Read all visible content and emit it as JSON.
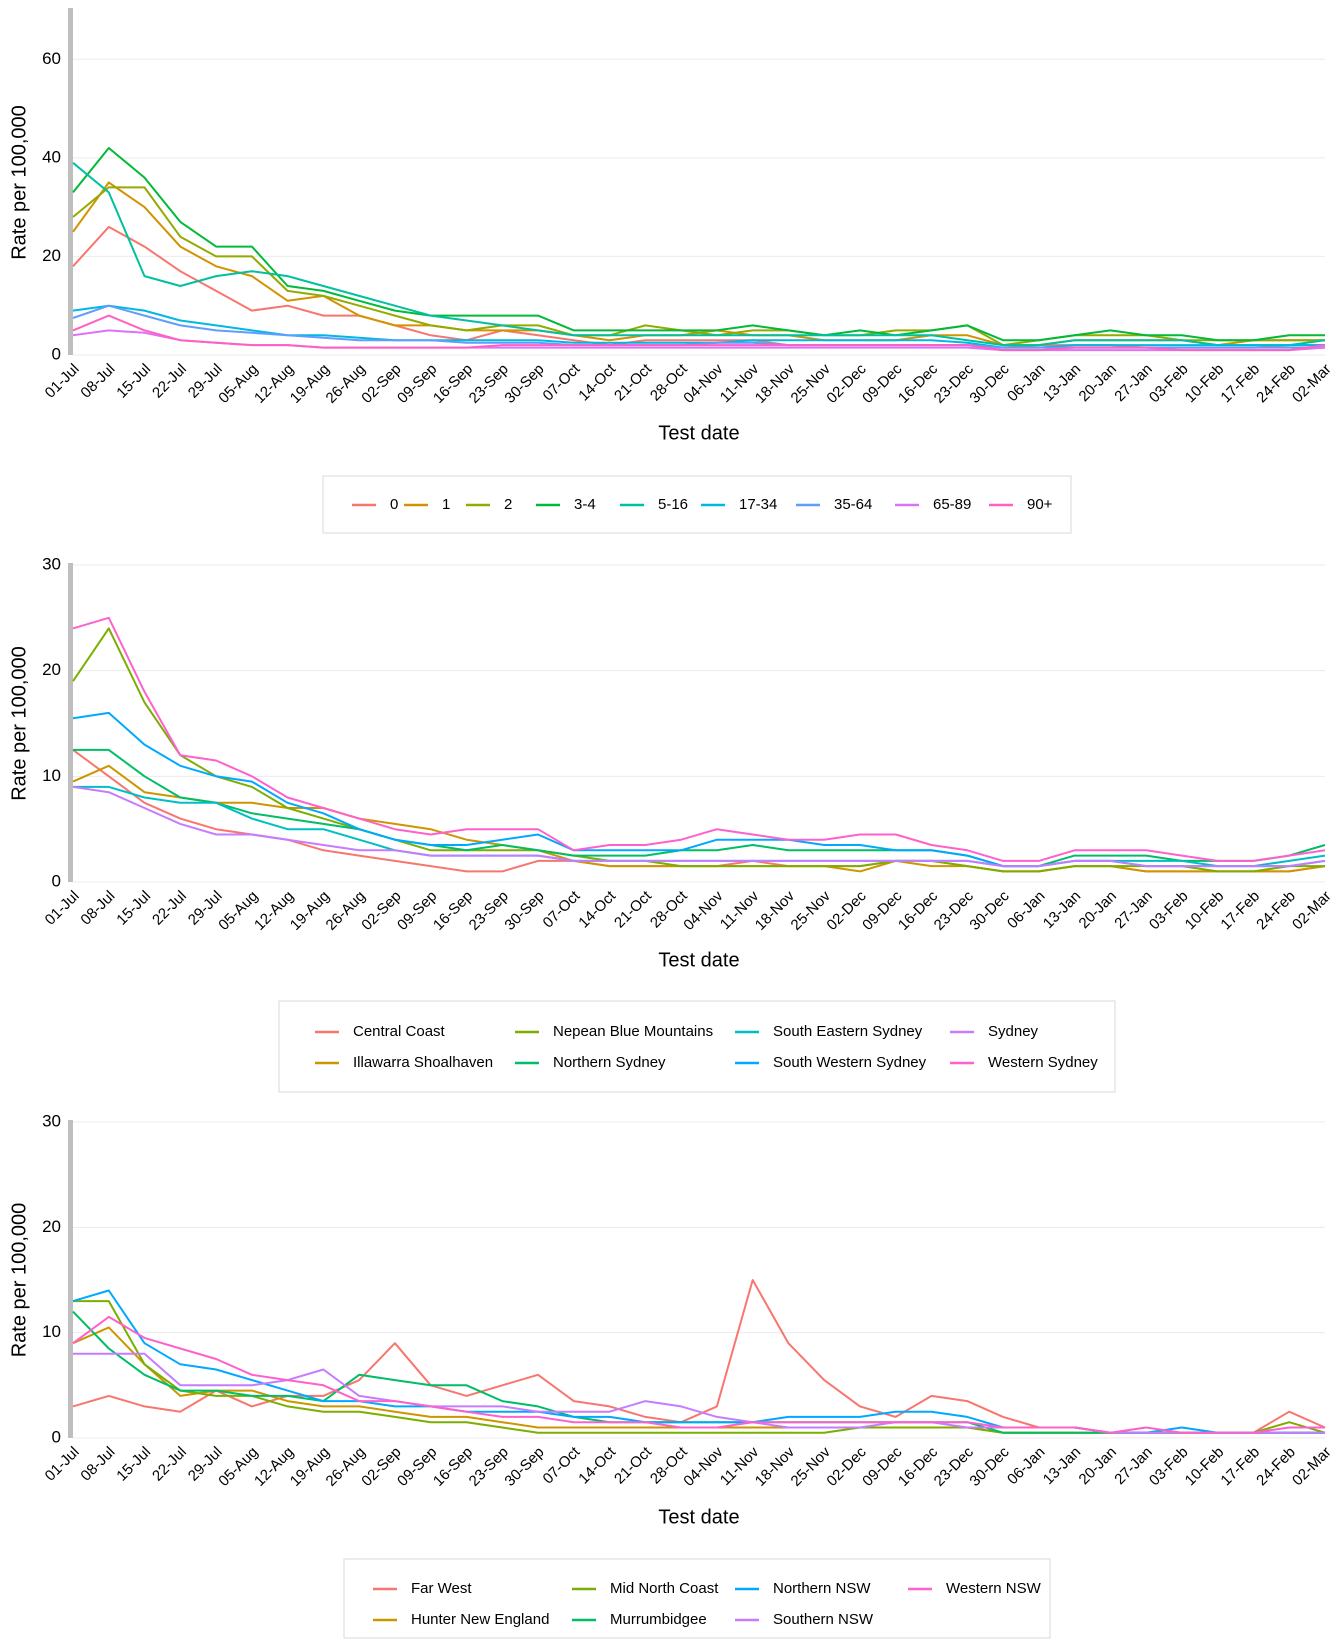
{
  "chart_data": [
    {
      "type": "line",
      "y_label": "Rate per 100,000",
      "x_label": "Test date",
      "grid": true,
      "categories": [
        "01-Jul",
        "08-Jul",
        "15-Jul",
        "22-Jul",
        "29-Jul",
        "05-Aug",
        "12-Aug",
        "19-Aug",
        "26-Aug",
        "02-Sep",
        "09-Sep",
        "16-Sep",
        "23-Sep",
        "30-Sep",
        "07-Oct",
        "14-Oct",
        "21-Oct",
        "28-Oct",
        "04-Nov",
        "11-Nov",
        "18-Nov",
        "25-Nov",
        "02-Dec",
        "09-Dec",
        "16-Dec",
        "23-Dec",
        "30-Dec",
        "06-Jan",
        "13-Jan",
        "20-Jan",
        "27-Jan",
        "03-Feb",
        "10-Feb",
        "17-Feb",
        "24-Feb",
        "02-Mar"
      ],
      "ylim": [
        0,
        70
      ],
      "yticks": [
        0,
        20,
        40,
        60
      ],
      "series": [
        {
          "name": "0",
          "color": "#F8766D",
          "values": [
            18,
            26,
            22,
            17,
            13,
            9,
            10,
            8,
            8,
            6,
            4,
            3,
            5,
            4,
            3,
            2,
            3,
            3,
            3,
            3,
            2,
            2,
            2,
            2,
            2,
            2,
            1.5,
            2,
            2,
            2,
            1.5,
            1.5,
            1.5,
            1.5,
            2,
            2
          ]
        },
        {
          "name": "1",
          "color": "#D39200",
          "values": [
            25,
            35,
            30,
            22,
            18,
            16,
            11,
            12,
            8,
            6,
            6,
            5,
            5,
            5,
            4,
            3,
            4,
            4,
            5,
            4,
            4,
            3,
            3,
            3,
            4,
            4,
            2,
            2,
            3,
            3,
            3,
            3,
            2,
            3,
            3,
            3
          ]
        },
        {
          "name": "2",
          "color": "#93AA00",
          "values": [
            28,
            34,
            34,
            24,
            20,
            20,
            13,
            12,
            10,
            8,
            6,
            5,
            6,
            6,
            4,
            4,
            6,
            5,
            4,
            5,
            5,
            4,
            4,
            5,
            5,
            6,
            2,
            3,
            4,
            4,
            4,
            3,
            3,
            3,
            3,
            3
          ]
        },
        {
          "name": "3-4",
          "color": "#00BA38",
          "values": [
            33,
            42,
            36,
            27,
            22,
            22,
            14,
            13,
            11,
            9,
            8,
            8,
            8,
            8,
            5,
            5,
            5,
            5,
            5,
            6,
            5,
            4,
            5,
            4,
            5,
            6,
            3,
            3,
            4,
            5,
            4,
            4,
            3,
            3,
            4,
            4
          ]
        },
        {
          "name": "5-16",
          "color": "#00C19F",
          "values": [
            39,
            33,
            16,
            14,
            16,
            17,
            16,
            14,
            12,
            10,
            8,
            7,
            6,
            5,
            4,
            4,
            4,
            4,
            4,
            4,
            4,
            4,
            4,
            4,
            4,
            3,
            2,
            2,
            3,
            3,
            3,
            3,
            2,
            2,
            2,
            3
          ]
        },
        {
          "name": "17-34",
          "color": "#00B9E3",
          "values": [
            9,
            10,
            9,
            7,
            6,
            5,
            4,
            4,
            3.5,
            3,
            3,
            3,
            3,
            3,
            2.5,
            2.5,
            2.5,
            2.5,
            2.5,
            3,
            3,
            3,
            3,
            3,
            3,
            2.5,
            1.5,
            1.5,
            2,
            2,
            2,
            2,
            2,
            2,
            2,
            2
          ]
        },
        {
          "name": "35-64",
          "color": "#619CFF",
          "values": [
            7.5,
            10,
            8,
            6,
            5,
            4.5,
            4,
            3.5,
            3,
            3,
            3,
            2.5,
            2.5,
            2.5,
            2,
            2,
            2,
            2,
            2.5,
            2.5,
            2,
            2,
            2,
            2,
            2,
            2,
            1.5,
            1.5,
            1.5,
            1.5,
            1.5,
            1.5,
            1.5,
            1.5,
            1.5,
            1.5
          ]
        },
        {
          "name": "65-89",
          "color": "#DB72FB",
          "values": [
            4,
            5,
            4.5,
            3,
            2.5,
            2,
            2,
            1.5,
            1.5,
            1.5,
            1.5,
            1.5,
            1.5,
            1.5,
            1.5,
            1.5,
            1.5,
            1.5,
            1.5,
            1.5,
            1.5,
            1.5,
            1.5,
            1.5,
            1.5,
            1.5,
            1,
            1,
            1,
            1,
            1,
            1,
            1,
            1,
            1,
            1.5
          ]
        },
        {
          "name": "90+",
          "color": "#FF61C3",
          "values": [
            5,
            8,
            5,
            3,
            2.5,
            2,
            2,
            1.5,
            1.5,
            1.5,
            1.5,
            1.5,
            2,
            2,
            2,
            2,
            2,
            2,
            2,
            2,
            2,
            2,
            2,
            2,
            2,
            2,
            1,
            1,
            1.5,
            1.5,
            1.5,
            1,
            1,
            1,
            1,
            2
          ]
        }
      ]
    },
    {
      "type": "line",
      "y_label": "Rate per 100,000",
      "x_label": "Test date",
      "grid": true,
      "categories": [
        "01-Jul",
        "08-Jul",
        "15-Jul",
        "22-Jul",
        "29-Jul",
        "05-Aug",
        "12-Aug",
        "19-Aug",
        "26-Aug",
        "02-Sep",
        "09-Sep",
        "16-Sep",
        "23-Sep",
        "30-Sep",
        "07-Oct",
        "14-Oct",
        "21-Oct",
        "28-Oct",
        "04-Nov",
        "11-Nov",
        "18-Nov",
        "25-Nov",
        "02-Dec",
        "09-Dec",
        "16-Dec",
        "23-Dec",
        "30-Dec",
        "06-Jan",
        "13-Jan",
        "20-Jan",
        "27-Jan",
        "03-Feb",
        "10-Feb",
        "17-Feb",
        "24-Feb",
        "02-Mar"
      ],
      "ylim": [
        0,
        30
      ],
      "yticks": [
        0,
        10,
        20,
        30
      ],
      "series": [
        {
          "name": "Central Coast",
          "color": "#F8766D",
          "values": [
            12.5,
            10,
            7.5,
            6,
            5,
            4.5,
            4,
            3,
            2.5,
            2,
            1.5,
            1,
            1,
            2,
            2,
            1.5,
            1.5,
            1.5,
            1.5,
            2,
            1.5,
            1.5,
            1.5,
            2,
            2,
            1.5,
            1,
            1,
            1.5,
            1.5,
            1,
            1,
            1,
            1,
            1,
            1.5
          ]
        },
        {
          "name": "Illawarra Shoalhaven",
          "color": "#CD9600",
          "values": [
            9.5,
            11,
            8.5,
            8,
            7.5,
            7.5,
            7,
            7,
            6,
            5.5,
            5,
            4,
            3.5,
            3,
            2,
            1.5,
            1.5,
            1.5,
            1.5,
            1.5,
            1.5,
            1.5,
            1,
            2,
            1.5,
            1.5,
            1,
            1,
            1.5,
            1.5,
            1,
            1,
            1,
            1,
            1,
            1.5
          ]
        },
        {
          "name": "Nepean Blue Mountains",
          "color": "#7CAE00",
          "values": [
            19,
            24,
            17,
            12,
            10,
            9,
            7,
            6,
            5,
            4,
            3,
            3,
            3,
            3,
            2.5,
            2,
            2,
            1.5,
            1.5,
            1.5,
            1.5,
            1.5,
            1.5,
            2,
            2,
            1.5,
            1,
            1,
            1.5,
            1.5,
            1.5,
            1.5,
            1,
            1,
            1.5,
            1.5
          ]
        },
        {
          "name": "Northern Sydney",
          "color": "#00BE67",
          "values": [
            12.5,
            12.5,
            10,
            8,
            7.5,
            6.5,
            6,
            5.5,
            5,
            4,
            3.5,
            3,
            3.5,
            3,
            2.5,
            2.5,
            2.5,
            3,
            3,
            3.5,
            3,
            3,
            3,
            3,
            3,
            2.5,
            1.5,
            1.5,
            2.5,
            2.5,
            2.5,
            2,
            2,
            2,
            2.5,
            3.5
          ]
        },
        {
          "name": "South Eastern Sydney",
          "color": "#00BFC4",
          "values": [
            9,
            9,
            8,
            7.5,
            7.5,
            6,
            5,
            5,
            4,
            3,
            2.5,
            2.5,
            2.5,
            2.5,
            2,
            2,
            2,
            2,
            2,
            2,
            2,
            2,
            2,
            2,
            2,
            2,
            1.5,
            1.5,
            2,
            2,
            2,
            2,
            1.5,
            1.5,
            2,
            2.5
          ]
        },
        {
          "name": "South Western Sydney",
          "color": "#00A9FF",
          "values": [
            15.5,
            16,
            13,
            11,
            10,
            9.5,
            7.5,
            6.5,
            5,
            4,
            3.5,
            3.5,
            4,
            4.5,
            3,
            3,
            3,
            3,
            4,
            4,
            4,
            3.5,
            3.5,
            3,
            3,
            2.5,
            1.5,
            1.5,
            2,
            2,
            1.5,
            1.5,
            1.5,
            1.5,
            1.5,
            2
          ]
        },
        {
          "name": "Sydney",
          "color": "#C77CFF",
          "values": [
            9,
            8.5,
            7,
            5.5,
            4.5,
            4.5,
            4,
            3.5,
            3,
            3,
            2.5,
            2.5,
            2.5,
            2.5,
            2,
            2,
            2,
            2,
            2,
            2,
            2,
            2,
            2,
            2,
            2,
            2,
            1.5,
            1.5,
            2,
            2,
            1.5,
            1.5,
            1.5,
            1.5,
            1.5,
            2
          ]
        },
        {
          "name": "Western Sydney",
          "color": "#FF61CC",
          "values": [
            24,
            25,
            18,
            12,
            11.5,
            10,
            8,
            7,
            6,
            5,
            4.5,
            5,
            5,
            5,
            3,
            3.5,
            3.5,
            4,
            5,
            4.5,
            4,
            4,
            4.5,
            4.5,
            3.5,
            3,
            2,
            2,
            3,
            3,
            3,
            2.5,
            2,
            2,
            2.5,
            3
          ]
        }
      ]
    },
    {
      "type": "line",
      "y_label": "Rate per 100,000",
      "x_label": "Test date",
      "grid": true,
      "categories": [
        "01-Jul",
        "08-Jul",
        "15-Jul",
        "22-Jul",
        "29-Jul",
        "05-Aug",
        "12-Aug",
        "19-Aug",
        "26-Aug",
        "02-Sep",
        "09-Sep",
        "16-Sep",
        "23-Sep",
        "30-Sep",
        "07-Oct",
        "14-Oct",
        "21-Oct",
        "28-Oct",
        "04-Nov",
        "11-Nov",
        "18-Nov",
        "25-Nov",
        "02-Dec",
        "09-Dec",
        "16-Dec",
        "23-Dec",
        "30-Dec",
        "06-Jan",
        "13-Jan",
        "20-Jan",
        "27-Jan",
        "03-Feb",
        "10-Feb",
        "17-Feb",
        "24-Feb",
        "02-Mar"
      ],
      "ylim": [
        0,
        30
      ],
      "yticks": [
        0,
        10,
        20,
        30
      ],
      "series": [
        {
          "name": "Far West",
          "color": "#F8766D",
          "values": [
            3,
            4,
            3,
            2.5,
            4.5,
            3,
            4,
            4,
            5.5,
            9,
            5,
            4,
            5,
            6,
            3.5,
            3,
            2,
            1.5,
            3,
            15,
            9,
            5.5,
            3,
            2,
            4,
            3.5,
            2,
            1,
            1,
            0.5,
            0.5,
            0.5,
            0.5,
            0.5,
            2.5,
            1
          ]
        },
        {
          "name": "Hunter New England",
          "color": "#CD9600",
          "values": [
            9,
            10.5,
            7,
            4,
            4.5,
            4.5,
            3.5,
            3,
            3,
            2.5,
            2,
            2,
            1.5,
            1,
            1,
            1,
            1,
            1,
            1,
            1,
            1,
            1,
            1,
            1,
            1,
            1,
            0.5,
            0.5,
            0.5,
            0.5,
            0.5,
            0.5,
            0.5,
            0.5,
            0.5,
            0.5
          ]
        },
        {
          "name": "Mid North Coast",
          "color": "#7CAE00",
          "values": [
            13,
            13,
            7,
            4.5,
            4,
            4,
            3,
            2.5,
            2.5,
            2,
            1.5,
            1.5,
            1,
            0.5,
            0.5,
            0.5,
            0.5,
            0.5,
            0.5,
            0.5,
            0.5,
            0.5,
            1,
            1,
            1,
            1,
            0.5,
            0.5,
            0.5,
            0.5,
            0.5,
            0.5,
            0.5,
            0.5,
            1.5,
            0.5
          ]
        },
        {
          "name": "Murrumbidgee",
          "color": "#00BE67",
          "values": [
            12,
            8.5,
            6,
            4.5,
            4.5,
            4,
            4,
            3.5,
            6,
            5.5,
            5,
            5,
            3.5,
            3,
            2,
            1.5,
            1.5,
            1.5,
            1.5,
            1.5,
            1.5,
            1.5,
            1.5,
            1.5,
            1.5,
            1.5,
            0.5,
            0.5,
            0.5,
            0.5,
            0.5,
            0.5,
            0.5,
            0.5,
            0.5,
            0.5
          ]
        },
        {
          "name": "Northern NSW",
          "color": "#00A9FF",
          "values": [
            13,
            14,
            9,
            7,
            6.5,
            5.5,
            4.5,
            3.5,
            3.5,
            3,
            3,
            2.5,
            2.5,
            2.5,
            2,
            2,
            1.5,
            1.5,
            1.5,
            1.5,
            2,
            2,
            2,
            2.5,
            2.5,
            2,
            1,
            1,
            1,
            0.5,
            0.5,
            1,
            0.5,
            0.5,
            0.5,
            0.5
          ]
        },
        {
          "name": "Southern NSW",
          "color": "#C77CFF",
          "values": [
            8,
            8,
            8,
            5,
            5,
            5,
            5.5,
            6.5,
            4,
            3.5,
            3,
            3,
            3,
            2.5,
            2.5,
            2.5,
            3.5,
            3,
            2,
            1.5,
            1,
            1,
            1,
            1.5,
            1.5,
            1,
            1,
            1,
            1,
            0.5,
            0.5,
            0.5,
            0.5,
            0.5,
            0.5,
            0.5
          ]
        },
        {
          "name": "Western NSW",
          "color": "#FF61CC",
          "values": [
            9,
            11.5,
            9.5,
            8.5,
            7.5,
            6,
            5.5,
            5,
            3.5,
            3.5,
            3,
            2.5,
            2,
            2,
            1.5,
            1.5,
            1.5,
            1,
            1,
            1.5,
            1.5,
            1.5,
            1.5,
            1.5,
            1.5,
            1.5,
            1,
            1,
            1,
            0.5,
            1,
            0.5,
            0.5,
            0.5,
            1,
            1
          ]
        }
      ]
    }
  ]
}
